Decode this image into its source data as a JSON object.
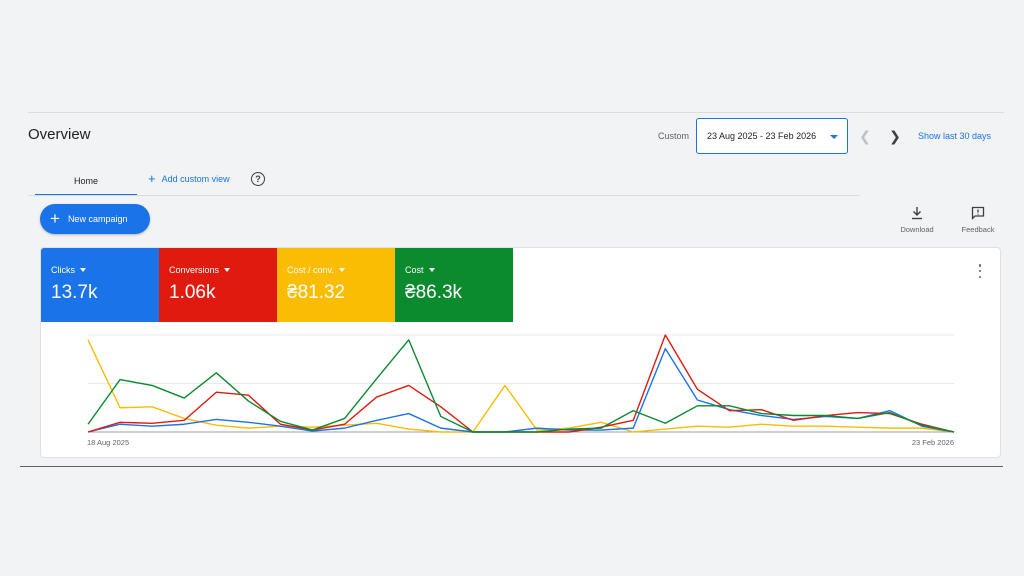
{
  "header": {
    "title": "Overview",
    "custom_label": "Custom",
    "date_range": "23 Aug 2025 - 23 Feb 2026",
    "show_last": "Show last 30 days"
  },
  "tabs": {
    "home": "Home",
    "add_custom_view": "Add custom view"
  },
  "actions": {
    "new_campaign": "New campaign",
    "download": "Download",
    "feedback": "Feedback"
  },
  "metrics": [
    {
      "label": "Clicks",
      "value": "13.7k",
      "color": "#1a73e8"
    },
    {
      "label": "Conversions",
      "value": "1.06k",
      "color": "#e01a0f"
    },
    {
      "label": "Cost / conv.",
      "value": "₴81.32",
      "color": "#fbbc04"
    },
    {
      "label": "Cost",
      "value": "₴86.3k",
      "color": "#0b8a2e"
    }
  ],
  "chart_data": {
    "type": "line",
    "x_start_label": "18 Aug 2025",
    "x_end_label": "23 Feb 2026",
    "point_count": 28,
    "grid": "horizontal",
    "series": [
      {
        "color": "#fbbc04",
        "values": [
          95,
          25,
          26,
          14,
          7,
          4,
          6,
          5,
          7,
          9,
          3,
          0,
          0,
          48,
          2,
          4,
          10,
          0,
          3,
          6,
          5,
          8,
          6,
          6,
          5,
          4,
          4,
          0
        ]
      },
      {
        "color": "#1a73e8",
        "values": [
          0,
          8,
          6,
          8,
          13,
          10,
          6,
          1,
          4,
          12,
          19,
          4,
          0,
          0,
          4,
          2,
          2,
          4,
          86,
          33,
          23,
          17,
          13,
          16,
          14,
          22,
          6,
          0
        ]
      },
      {
        "color": "#e01a0f",
        "values": [
          0,
          10,
          9,
          12,
          41,
          38,
          8,
          2,
          8,
          36,
          48,
          26,
          0,
          0,
          0,
          0,
          5,
          12,
          100,
          44,
          22,
          23,
          12,
          17,
          20,
          19,
          8,
          0
        ]
      },
      {
        "color": "#0b8a2e",
        "values": [
          8,
          54,
          48,
          35,
          61,
          32,
          11,
          2,
          14,
          55,
          95,
          16,
          0,
          0,
          0,
          3,
          4,
          22,
          9,
          27,
          27,
          19,
          17,
          17,
          14,
          20,
          7,
          0
        ]
      }
    ],
    "ylim": [
      0,
      100
    ]
  }
}
